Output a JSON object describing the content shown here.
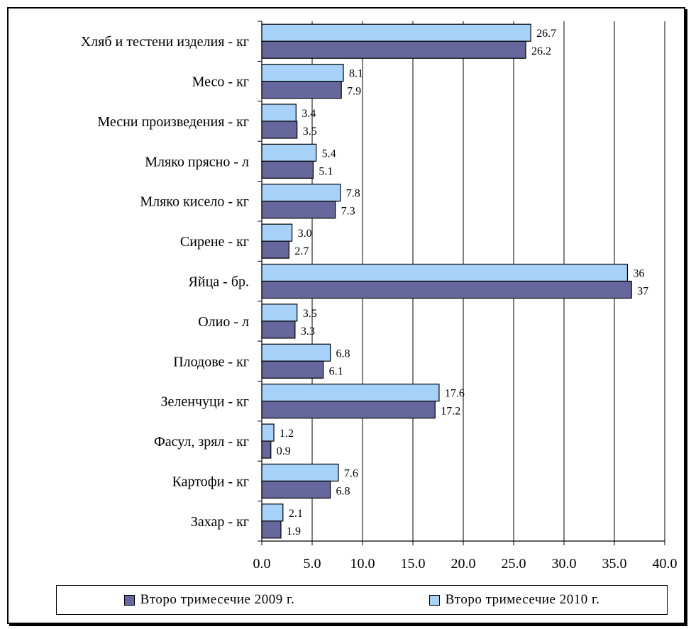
{
  "colors": {
    "series_2009": "#65679d",
    "series_2010": "#a6d2fa",
    "grid": "#000000"
  },
  "legend": {
    "items": [
      {
        "label": "Второ тримесечие 2009 г."
      },
      {
        "label": "Второ тримесечие 2010 г."
      }
    ]
  },
  "chart_data": {
    "type": "bar",
    "orientation": "horizontal",
    "title": "",
    "xlabel": "",
    "ylabel": "",
    "xlim": [
      0,
      40
    ],
    "x_ticks": [
      "0.0",
      "5.0",
      "10.0",
      "15.0",
      "20.0",
      "25.0",
      "30.0",
      "35.0",
      "40.0"
    ],
    "grid": "vertical",
    "legend_position": "bottom",
    "categories": [
      "Хляб и тестени изделия - кг",
      "Месо - кг",
      "Месни произведения  - кг",
      "Мляко прясно - л",
      "Мляко кисело - кг",
      "Сирене - кг",
      "Яйца - бр.",
      "Олио - л",
      "Плодове - кг",
      "Зеленчуци  - кг",
      "Фасул, зрял - кг",
      "Картофи - кг",
      "Захар - кг"
    ],
    "series": [
      {
        "name": "Второ тримесечие 2010 г.",
        "values": [
          26.7,
          8.1,
          3.4,
          5.4,
          7.8,
          3.0,
          36.3,
          3.5,
          6.8,
          17.6,
          1.2,
          7.6,
          2.1
        ],
        "labels": [
          "26.7",
          "8.1",
          "3.4",
          "5.4",
          "7.8",
          "3.0",
          "36",
          "3.5",
          "6.8",
          "17.6",
          "1.2",
          "7.6",
          "2.1"
        ]
      },
      {
        "name": "Второ тримесечие 2009 г.",
        "values": [
          26.2,
          7.9,
          3.5,
          5.1,
          7.3,
          2.7,
          36.7,
          3.3,
          6.1,
          17.2,
          0.9,
          6.8,
          1.9
        ],
        "labels": [
          "26.2",
          "7.9",
          "3.5",
          "5.1",
          "7.3",
          "2.7",
          "37",
          "3.3",
          "6.1",
          "17.2",
          "0.9",
          "6.8",
          "1.9"
        ]
      }
    ]
  }
}
